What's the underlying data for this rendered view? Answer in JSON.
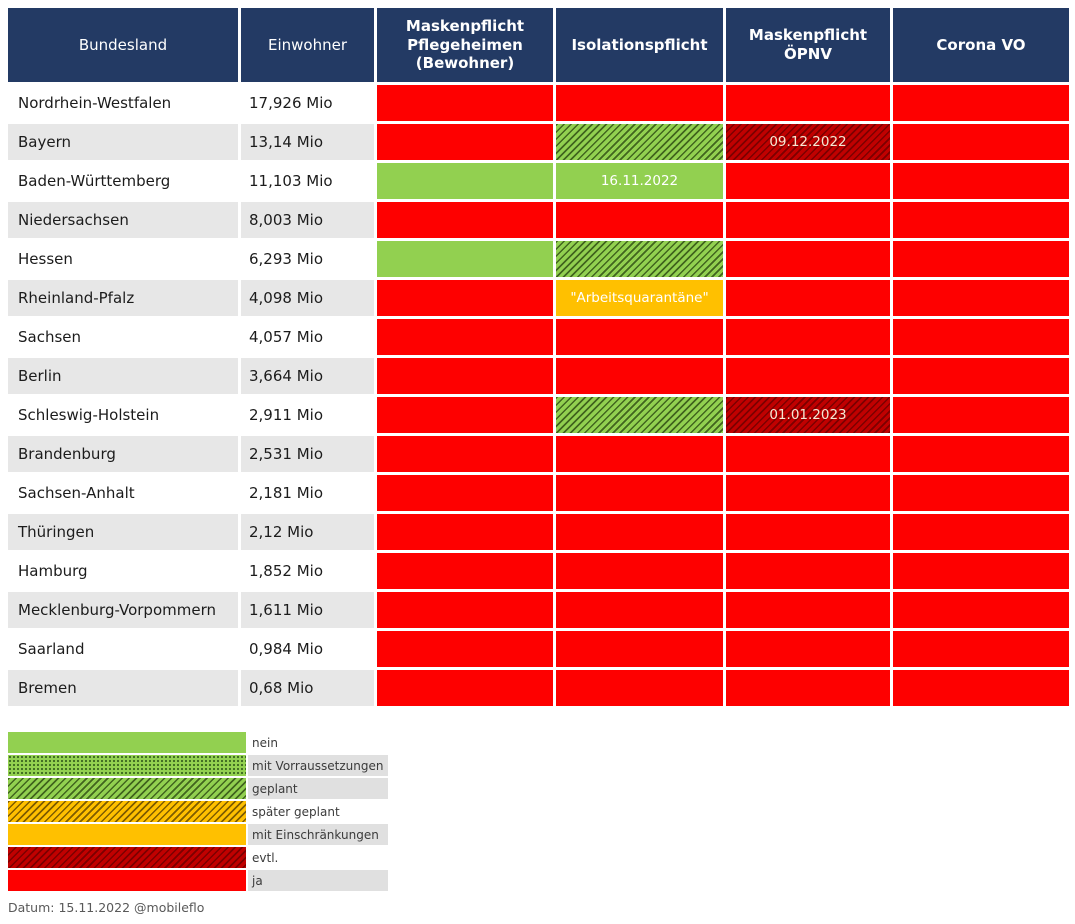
{
  "colors": {
    "header_bg": "#233A64",
    "red": "#FE0000",
    "green": "#92D050",
    "amber": "#FFC000",
    "dark_red": "#C00000",
    "row_alt": "#E7E7E7",
    "note_on_dark": "#F6E8D3"
  },
  "chart_data": {
    "type": "table",
    "columns": [
      "Bundesland",
      "Einwohner",
      "Maskenpflicht Pflegeheimen (Bewohner)",
      "Isolationspflicht",
      "Maskenpflicht ÖPNV",
      "Corona VO"
    ],
    "status_columns": [
      "maskenpflicht-pflegeheime",
      "isolationspflicht",
      "maskenpflicht-oepnv",
      "corona-vo"
    ],
    "rows": [
      {
        "bundesland": "Nordrhein-Westfalen",
        "einwohner": "17,926 Mio",
        "statuses": [
          {
            "status": "ja"
          },
          {
            "status": "ja"
          },
          {
            "status": "ja"
          },
          {
            "status": "ja"
          }
        ]
      },
      {
        "bundesland": "Bayern",
        "einwohner": "13,14 Mio",
        "statuses": [
          {
            "status": "ja"
          },
          {
            "status": "geplant"
          },
          {
            "status": "evtl.",
            "note": "09.12.2022"
          },
          {
            "status": "ja"
          }
        ]
      },
      {
        "bundesland": "Baden-Württemberg",
        "einwohner": "11,103 Mio",
        "statuses": [
          {
            "status": "nein"
          },
          {
            "status": "nein",
            "note": "16.11.2022"
          },
          {
            "status": "ja"
          },
          {
            "status": "ja"
          }
        ]
      },
      {
        "bundesland": "Niedersachsen",
        "einwohner": "8,003 Mio",
        "statuses": [
          {
            "status": "ja"
          },
          {
            "status": "ja"
          },
          {
            "status": "ja"
          },
          {
            "status": "ja"
          }
        ]
      },
      {
        "bundesland": "Hessen",
        "einwohner": "6,293 Mio",
        "statuses": [
          {
            "status": "nein"
          },
          {
            "status": "geplant"
          },
          {
            "status": "ja"
          },
          {
            "status": "ja"
          }
        ]
      },
      {
        "bundesland": "Rheinland-Pfalz",
        "einwohner": "4,098 Mio",
        "statuses": [
          {
            "status": "ja"
          },
          {
            "status": "mit Einschränkungen",
            "note": "\"Arbeitsquarantäne\""
          },
          {
            "status": "ja"
          },
          {
            "status": "ja"
          }
        ]
      },
      {
        "bundesland": "Sachsen",
        "einwohner": "4,057 Mio",
        "statuses": [
          {
            "status": "ja"
          },
          {
            "status": "ja"
          },
          {
            "status": "ja"
          },
          {
            "status": "ja"
          }
        ]
      },
      {
        "bundesland": "Berlin",
        "einwohner": "3,664 Mio",
        "statuses": [
          {
            "status": "ja"
          },
          {
            "status": "ja"
          },
          {
            "status": "ja"
          },
          {
            "status": "ja"
          }
        ]
      },
      {
        "bundesland": "Schleswig-Holstein",
        "einwohner": "2,911 Mio",
        "statuses": [
          {
            "status": "ja"
          },
          {
            "status": "geplant"
          },
          {
            "status": "evtl.",
            "note": "01.01.2023"
          },
          {
            "status": "ja"
          }
        ]
      },
      {
        "bundesland": "Brandenburg",
        "einwohner": "2,531 Mio",
        "statuses": [
          {
            "status": "ja"
          },
          {
            "status": "ja"
          },
          {
            "status": "ja"
          },
          {
            "status": "ja"
          }
        ]
      },
      {
        "bundesland": "Sachsen-Anhalt",
        "einwohner": "2,181 Mio",
        "statuses": [
          {
            "status": "ja"
          },
          {
            "status": "ja"
          },
          {
            "status": "ja"
          },
          {
            "status": "ja"
          }
        ]
      },
      {
        "bundesland": "Thüringen",
        "einwohner": "2,12 Mio",
        "statuses": [
          {
            "status": "ja"
          },
          {
            "status": "ja"
          },
          {
            "status": "ja"
          },
          {
            "status": "ja"
          }
        ]
      },
      {
        "bundesland": "Hamburg",
        "einwohner": "1,852 Mio",
        "statuses": [
          {
            "status": "ja"
          },
          {
            "status": "ja"
          },
          {
            "status": "ja"
          },
          {
            "status": "ja"
          }
        ]
      },
      {
        "bundesland": "Mecklenburg-Vorpommern",
        "einwohner": "1,611 Mio",
        "statuses": [
          {
            "status": "ja"
          },
          {
            "status": "ja"
          },
          {
            "status": "ja"
          },
          {
            "status": "ja"
          }
        ]
      },
      {
        "bundesland": "Saarland",
        "einwohner": "0,984 Mio",
        "statuses": [
          {
            "status": "ja"
          },
          {
            "status": "ja"
          },
          {
            "status": "ja"
          },
          {
            "status": "ja"
          }
        ]
      },
      {
        "bundesland": "Bremen",
        "einwohner": "0,68 Mio",
        "statuses": [
          {
            "status": "ja"
          },
          {
            "status": "ja"
          },
          {
            "status": "ja"
          },
          {
            "status": "ja"
          }
        ]
      }
    ],
    "legend": [
      {
        "label": "nein",
        "status": "nein",
        "shaded": false
      },
      {
        "label": "mit Vorraussetzungen",
        "status": "mit Vorraussetzungen",
        "shaded": true
      },
      {
        "label": "geplant",
        "status": "geplant",
        "shaded": true
      },
      {
        "label": "später geplant",
        "status": "später geplant",
        "shaded": false
      },
      {
        "label": "mit Einschränkungen",
        "status": "mit Einschränkungen",
        "shaded": true
      },
      {
        "label": "evtl.",
        "status": "evtl.",
        "shaded": false
      },
      {
        "label": "ja",
        "status": "ja",
        "shaded": true
      }
    ],
    "footer": "Datum: 15.11.2022 @mobileflo"
  }
}
